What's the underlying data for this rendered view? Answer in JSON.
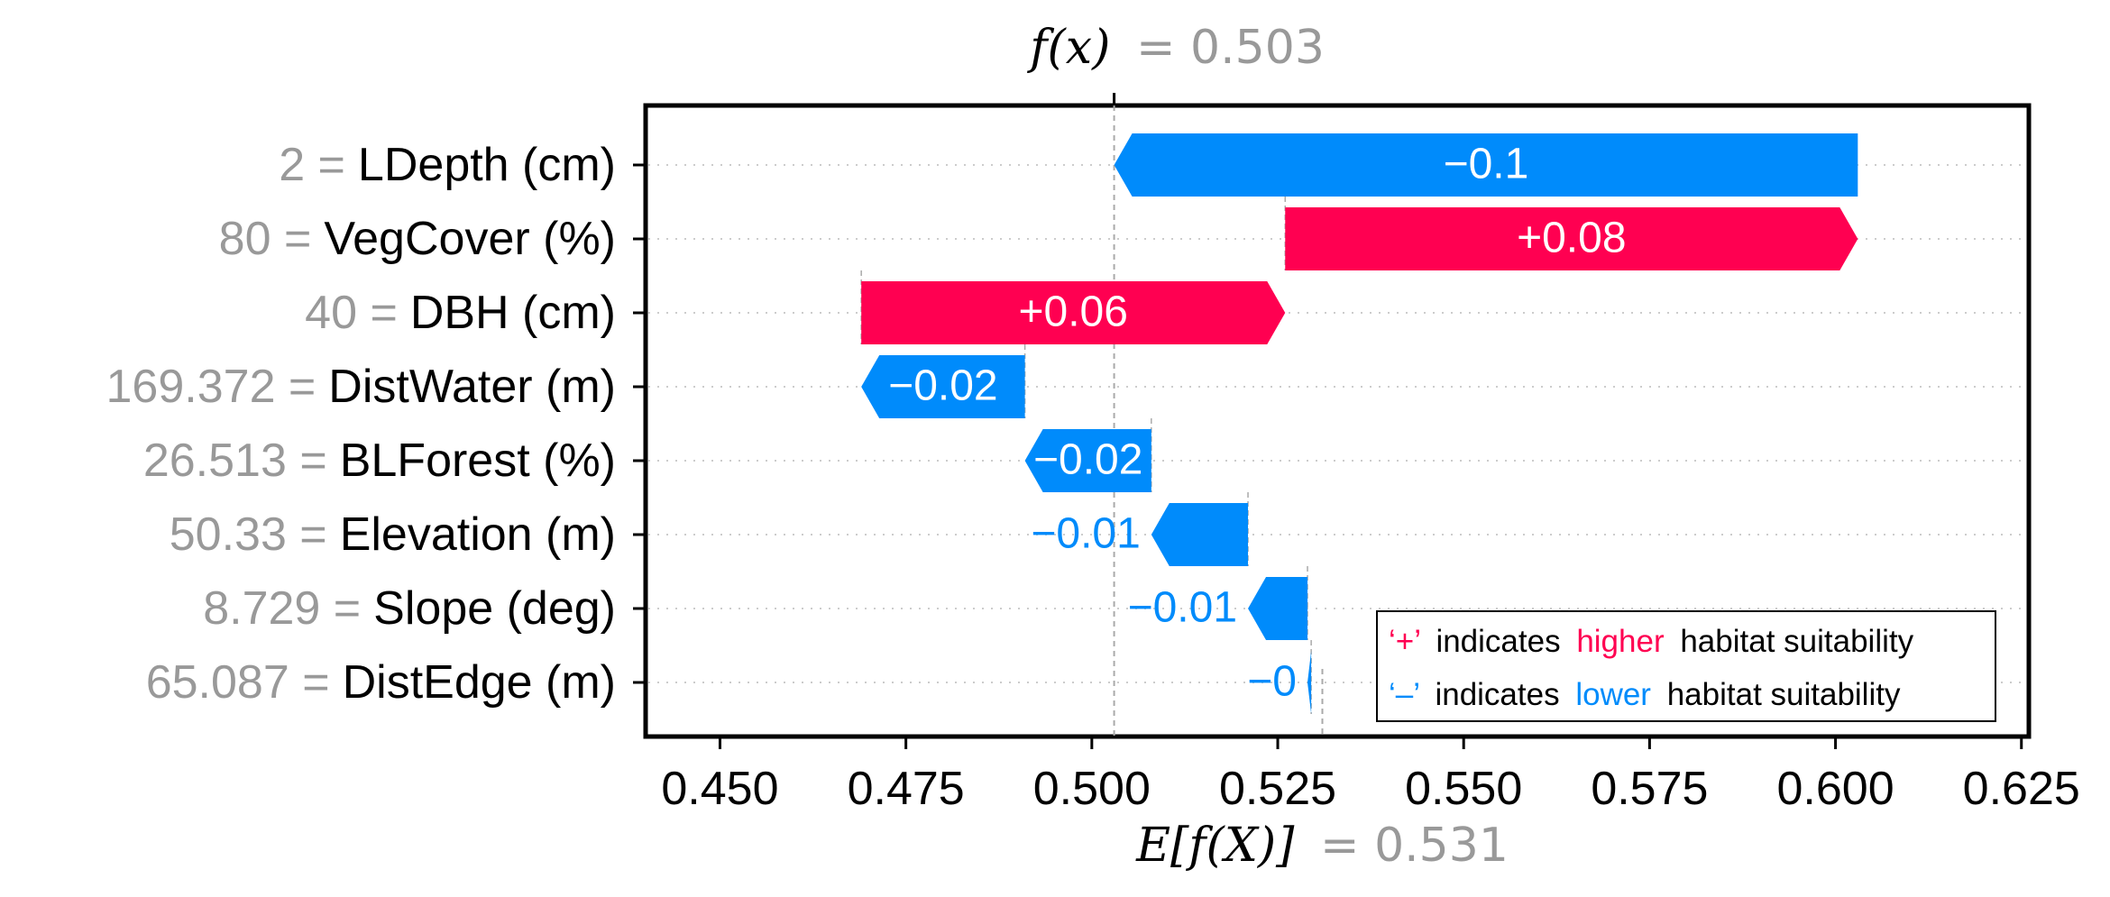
{
  "chart_data": {
    "type": "waterfall",
    "fx": {
      "label": "f(x)",
      "value_text": "= 0.503",
      "value": 0.503
    },
    "base": {
      "label": "E[f(X)]",
      "value_text": "= 0.531",
      "value": 0.531
    },
    "features": [
      {
        "value_text": "2 =",
        "name": "LDepth (cm)",
        "contribution": -0.1,
        "label": "−0.1"
      },
      {
        "value_text": "80 =",
        "name": "VegCover (%)",
        "contribution": 0.08,
        "label": "+0.08"
      },
      {
        "value_text": "40 =",
        "name": "DBH (cm)",
        "contribution": 0.06,
        "label": "+0.06"
      },
      {
        "value_text": "169.372 =",
        "name": "DistWater (m)",
        "contribution": -0.02,
        "label": "−0.02"
      },
      {
        "value_text": "26.513 =",
        "name": "BLForest (%)",
        "contribution": -0.02,
        "label": "−0.02"
      },
      {
        "value_text": "50.33 =",
        "name": "Elevation (m)",
        "contribution": -0.01,
        "label": "−0.01"
      },
      {
        "value_text": "8.729 =",
        "name": "Slope (deg)",
        "contribution": -0.01,
        "label": "−0.01"
      },
      {
        "value_text": "65.087 =",
        "name": "DistEdge (m)",
        "contribution": -0.0,
        "label": "−0"
      }
    ],
    "bars": [
      {
        "start": 0.603,
        "end": 0.503
      },
      {
        "start": 0.526,
        "end": 0.603
      },
      {
        "start": 0.469,
        "end": 0.526
      },
      {
        "start": 0.491,
        "end": 0.469
      },
      {
        "start": 0.508,
        "end": 0.491
      },
      {
        "start": 0.521,
        "end": 0.508
      },
      {
        "start": 0.529,
        "end": 0.521
      },
      {
        "start": 0.5295,
        "end": 0.529
      }
    ],
    "xlim": [
      0.44,
      0.626
    ],
    "xticks": [
      "0.450",
      "0.475",
      "0.500",
      "0.525",
      "0.550",
      "0.575",
      "0.600",
      "0.625"
    ],
    "xtick_values": [
      0.45,
      0.475,
      0.5,
      0.525,
      0.55,
      0.575,
      0.6,
      0.625
    ],
    "colors": {
      "positive": "#ff0051",
      "negative": "#008bfb",
      "grey": "#999999"
    },
    "legend": {
      "placement": "bottom-right",
      "items": [
        {
          "symbol": "‘+’",
          "pre": "indicates",
          "word": "higher",
          "post": "habitat suitability",
          "color": "#ff0051"
        },
        {
          "symbol": "‘–’",
          "pre": "indicates",
          "word": "lower",
          "post": "habitat suitability",
          "color": "#008bfb"
        }
      ]
    }
  }
}
